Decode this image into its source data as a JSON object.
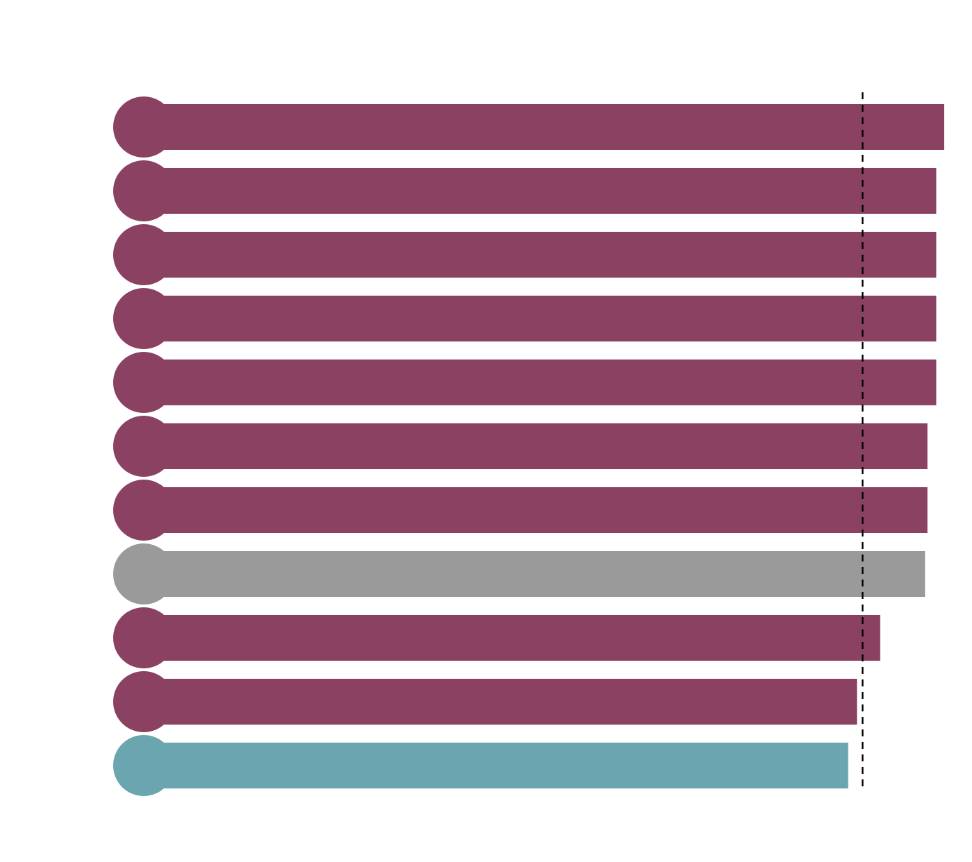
{
  "chart_data": {
    "type": "bar",
    "orientation": "horizontal",
    "values": [
      100,
      99.0,
      99.0,
      99.0,
      99.0,
      97.9,
      97.9,
      97.6,
      92.0,
      89.1,
      88.0
    ],
    "colors": [
      "#8b4161",
      "#8b4161",
      "#8b4161",
      "#8b4161",
      "#8b4161",
      "#8b4161",
      "#8b4161",
      "#9a9a9a",
      "#8b4161",
      "#8b4161",
      "#6ba6b0"
    ],
    "xlim": [
      0,
      100
    ],
    "reference_line": 89.8,
    "reference_color": "#000000"
  }
}
